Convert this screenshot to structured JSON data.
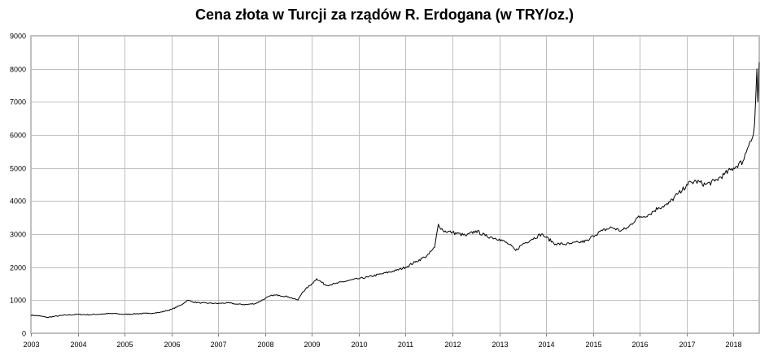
{
  "chart_data": {
    "type": "line",
    "title": "Cena złota w Turcji za rządów R. Erdogana (w TRY/oz.)",
    "xlabel": "",
    "ylabel": "",
    "xlim": [
      2003.0,
      2018.55
    ],
    "ylim": [
      0,
      9000
    ],
    "x_tick_labels": [
      "2003",
      "2004",
      "2005",
      "2006",
      "2007",
      "2008",
      "2009",
      "2010",
      "2011",
      "2012",
      "2013",
      "2014",
      "2015",
      "2016",
      "2017",
      "2018"
    ],
    "y_tick_labels": [
      "0",
      "1000",
      "2000",
      "3000",
      "4000",
      "5000",
      "6000",
      "7000",
      "8000",
      "9000"
    ],
    "grid": true,
    "legend": "none",
    "line_color": "#000000",
    "grid_color": "#bfbfbf",
    "series": [
      {
        "x": [
          2003.0,
          2003.2,
          2003.35,
          2003.5,
          2003.75,
          2004.0,
          2004.25,
          2004.5,
          2004.75,
          2005.0,
          2005.25,
          2005.5,
          2005.75,
          2006.0,
          2006.2,
          2006.35,
          2006.45,
          2006.6,
          2006.8,
          2007.0,
          2007.2,
          2007.4,
          2007.6,
          2007.8,
          2008.0,
          2008.15,
          2008.3,
          2008.5,
          2008.7,
          2008.8,
          2009.0,
          2009.1,
          2009.3,
          2009.5,
          2009.8,
          2010.0,
          2010.2,
          2010.5,
          2010.8,
          2011.0,
          2011.2,
          2011.4,
          2011.5,
          2011.62,
          2011.7,
          2011.8,
          2012.0,
          2012.3,
          2012.5,
          2012.7,
          2012.85,
          2013.0,
          2013.2,
          2013.35,
          2013.5,
          2013.7,
          2013.9,
          2014.0,
          2014.2,
          2014.5,
          2014.7,
          2014.9,
          2015.0,
          2015.2,
          2015.4,
          2015.6,
          2015.75,
          2015.95,
          2016.0,
          2016.2,
          2016.4,
          2016.6,
          2016.8,
          2016.9,
          2017.0,
          2017.2,
          2017.4,
          2017.6,
          2017.8,
          2018.0,
          2018.2,
          2018.3,
          2018.35,
          2018.4,
          2018.45,
          2018.5,
          2018.52,
          2018.55
        ],
        "values": [
          550,
          520,
          480,
          510,
          550,
          570,
          560,
          580,
          600,
          570,
          590,
          600,
          630,
          720,
          850,
          1000,
          950,
          920,
          910,
          900,
          920,
          880,
          870,
          900,
          1050,
          1150,
          1150,
          1100,
          1000,
          1250,
          1500,
          1650,
          1450,
          1500,
          1600,
          1650,
          1700,
          1800,
          1900,
          2000,
          2150,
          2300,
          2400,
          2600,
          3300,
          3100,
          3050,
          2950,
          3100,
          2950,
          2900,
          2850,
          2700,
          2500,
          2700,
          2850,
          3000,
          2900,
          2700,
          2700,
          2750,
          2800,
          2950,
          3100,
          3200,
          3100,
          3200,
          3500,
          3500,
          3600,
          3800,
          3900,
          4200,
          4300,
          4500,
          4600,
          4500,
          4600,
          4800,
          5000,
          5200,
          5600,
          5800,
          5900,
          6300,
          8000,
          7000,
          8200
        ]
      }
    ]
  }
}
